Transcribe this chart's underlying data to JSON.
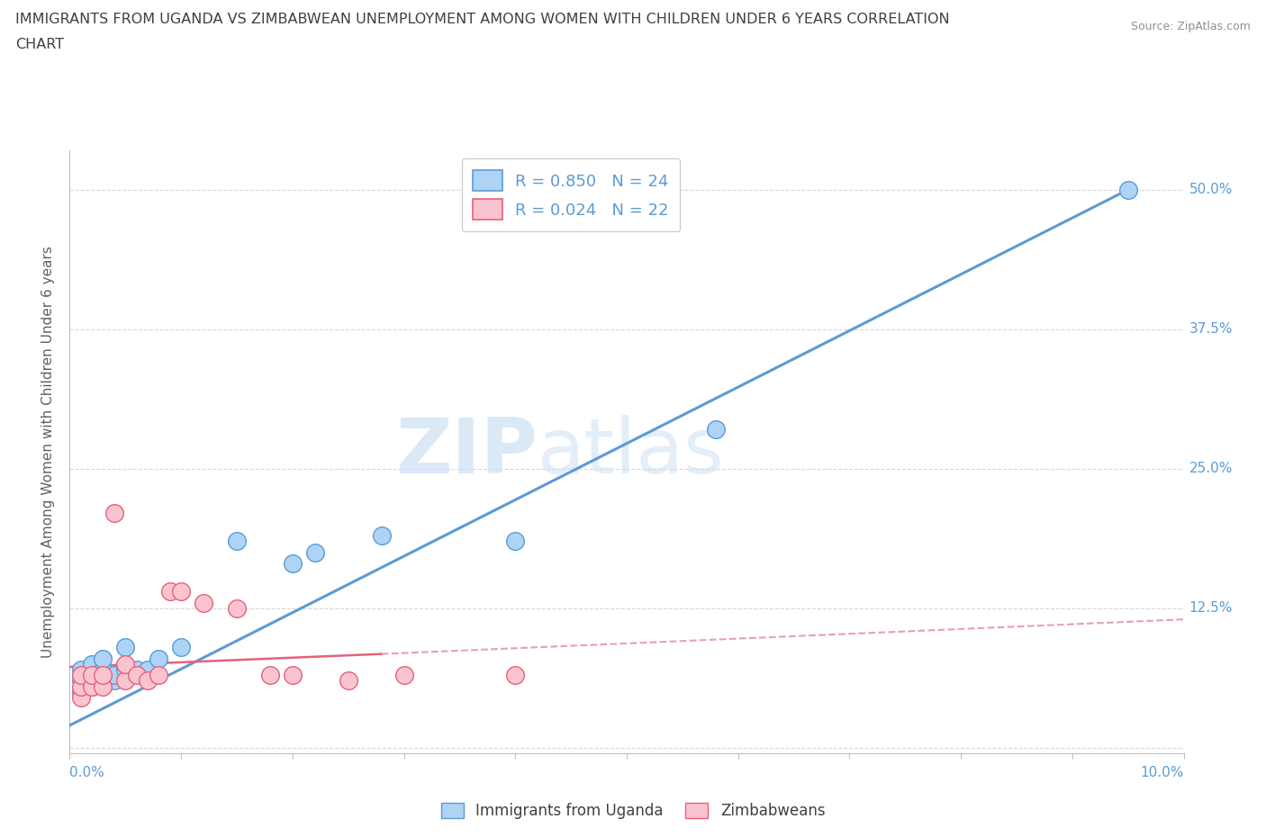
{
  "title_line1": "IMMIGRANTS FROM UGANDA VS ZIMBABWEAN UNEMPLOYMENT AMONG WOMEN WITH CHILDREN UNDER 6 YEARS CORRELATION",
  "title_line2": "CHART",
  "source": "Source: ZipAtlas.com",
  "xlabel_bottom_left": "0.0%",
  "xlabel_bottom_right": "10.0%",
  "ylabel": "Unemployment Among Women with Children Under 6 years",
  "xlim": [
    0.0,
    0.1
  ],
  "ylim": [
    -0.005,
    0.535
  ],
  "yticks": [
    0.0,
    0.125,
    0.25,
    0.375,
    0.5
  ],
  "ytick_labels": [
    "",
    "12.5%",
    "25.0%",
    "37.5%",
    "50.0%"
  ],
  "watermark_zip": "ZIP",
  "watermark_atlas": "atlas",
  "legend_r1": "R = 0.850",
  "legend_n1": "N = 24",
  "legend_r2": "R = 0.024",
  "legend_n2": "N = 22",
  "blue_scatter_x": [
    0.001,
    0.001,
    0.001,
    0.002,
    0.002,
    0.002,
    0.003,
    0.003,
    0.003,
    0.004,
    0.004,
    0.005,
    0.005,
    0.006,
    0.007,
    0.008,
    0.01,
    0.015,
    0.02,
    0.022,
    0.028,
    0.04,
    0.058,
    0.095
  ],
  "blue_scatter_y": [
    0.05,
    0.06,
    0.07,
    0.055,
    0.065,
    0.075,
    0.06,
    0.07,
    0.08,
    0.06,
    0.065,
    0.07,
    0.09,
    0.07,
    0.07,
    0.08,
    0.09,
    0.185,
    0.165,
    0.175,
    0.19,
    0.185,
    0.285,
    0.5
  ],
  "pink_scatter_x": [
    0.001,
    0.001,
    0.001,
    0.002,
    0.002,
    0.003,
    0.003,
    0.004,
    0.005,
    0.005,
    0.006,
    0.007,
    0.008,
    0.009,
    0.01,
    0.012,
    0.015,
    0.018,
    0.02,
    0.025,
    0.03,
    0.04
  ],
  "pink_scatter_y": [
    0.045,
    0.055,
    0.065,
    0.055,
    0.065,
    0.055,
    0.065,
    0.21,
    0.06,
    0.075,
    0.065,
    0.06,
    0.065,
    0.14,
    0.14,
    0.13,
    0.125,
    0.065,
    0.065,
    0.06,
    0.065,
    0.065
  ],
  "blue_line_x": [
    0.0,
    0.095
  ],
  "blue_line_y": [
    0.02,
    0.5
  ],
  "pink_line_x": [
    -0.002,
    0.1
  ],
  "pink_line_y": [
    0.072,
    0.115
  ],
  "blue_color": "#aed4f5",
  "blue_edge_color": "#5b9bd5",
  "pink_color": "#f9c4cf",
  "pink_edge_color": "#e8607a",
  "blue_line_color": "#5b9bd5",
  "pink_line_color": "#e8607a",
  "pink_dash_color": "#e8a0aa",
  "grid_color": "#d8d8d8",
  "title_color": "#404040",
  "axis_color": "#5b9bd5",
  "right_tick_color": "#5b9bd5",
  "background_color": "#ffffff"
}
